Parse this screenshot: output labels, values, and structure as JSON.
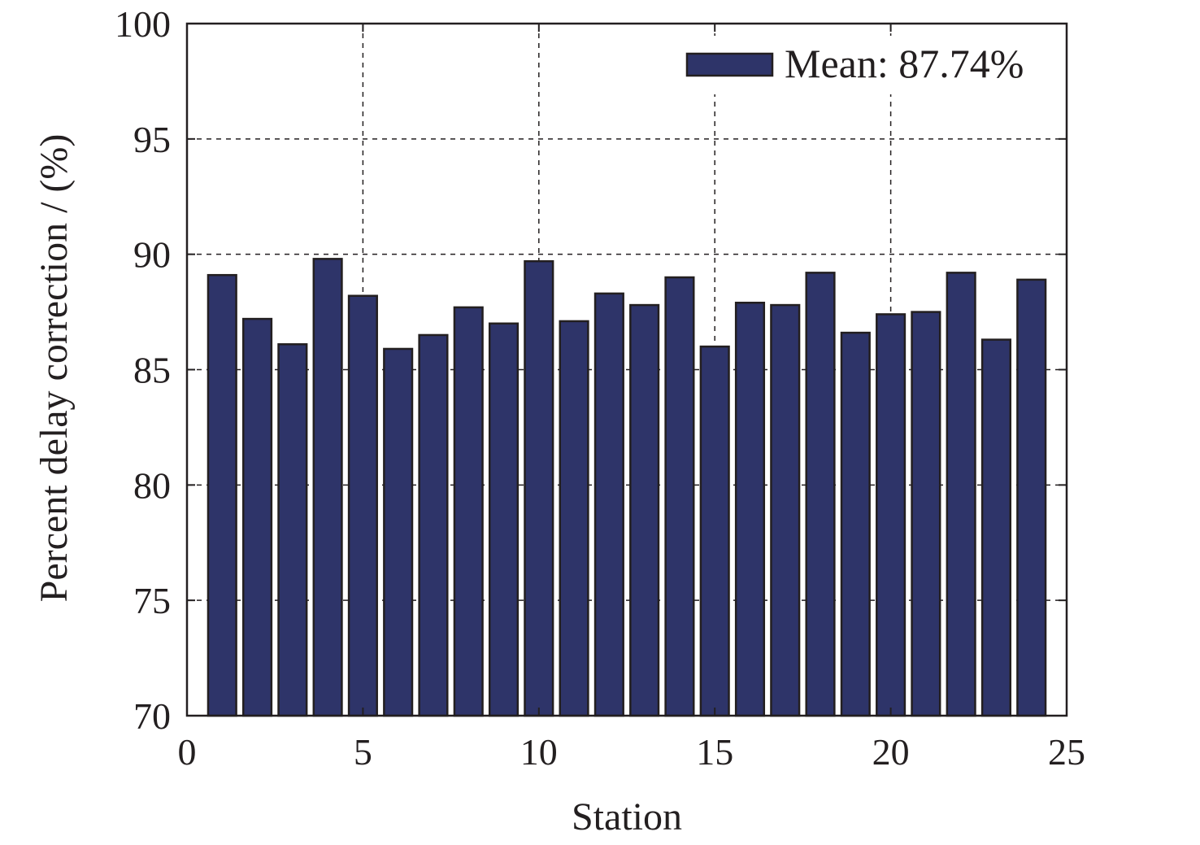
{
  "chart_data": {
    "type": "bar",
    "title": "",
    "xlabel": "Station",
    "ylabel": "Percent delay correction / (%)",
    "xlim": [
      0,
      25
    ],
    "ylim": [
      70,
      100
    ],
    "xticks": [
      0,
      5,
      10,
      15,
      20,
      25
    ],
    "yticks": [
      70,
      75,
      80,
      85,
      90,
      95,
      100
    ],
    "grid": true,
    "legend_position": "top-right",
    "bar_color": "#2e3469",
    "series": [
      {
        "name": "Mean: 87.74%",
        "x": [
          1,
          2,
          3,
          4,
          5,
          6,
          7,
          8,
          9,
          10,
          11,
          12,
          13,
          14,
          15,
          16,
          17,
          18,
          19,
          20,
          21,
          22,
          23,
          24
        ],
        "values": [
          89.1,
          87.2,
          86.1,
          89.8,
          88.2,
          85.9,
          86.5,
          87.7,
          87.0,
          89.7,
          87.1,
          88.3,
          87.8,
          89.0,
          86.0,
          87.9,
          87.8,
          89.2,
          86.6,
          87.4,
          87.5,
          89.2,
          86.3,
          88.9
        ]
      }
    ]
  }
}
